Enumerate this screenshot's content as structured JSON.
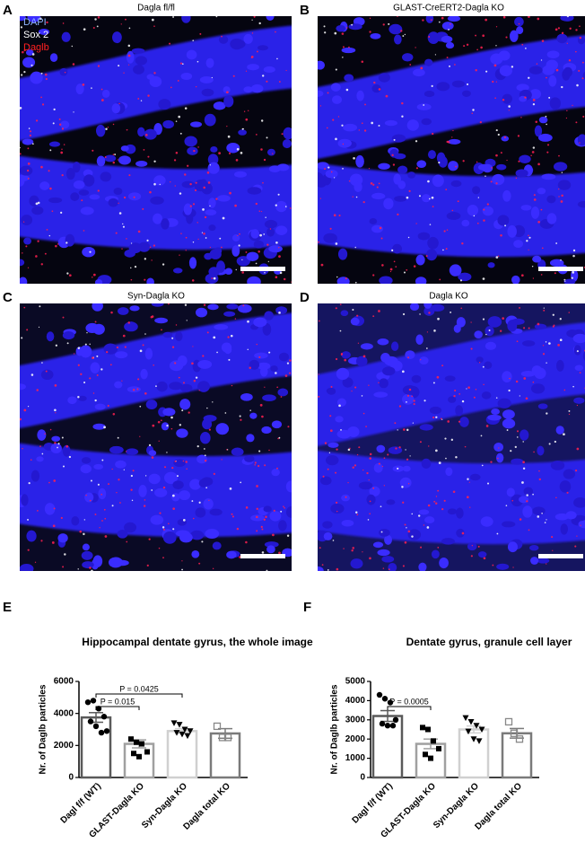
{
  "panels": [
    {
      "letter": "A",
      "title": "Dagla fl/fl",
      "legend": [
        "DAPI",
        "Sox 2",
        "Daglb"
      ]
    },
    {
      "letter": "B",
      "title": "GLAST-CreERT2-Dagla KO"
    },
    {
      "letter": "C",
      "title": "Syn-Dagla KO"
    },
    {
      "letter": "D",
      "title": "Dagla KO"
    }
  ],
  "chart_data": [
    {
      "type": "bar",
      "letter": "E",
      "title": "Hippocampal dentate gyrus, the whole image",
      "ylabel": "Nr. of Daglb particles",
      "categories": [
        "Dagl f/f (WT)",
        "GLAST-Dagla KO",
        "Syn-Dagla KO",
        "Dagla total KO"
      ],
      "values": [
        3750,
        2100,
        2900,
        2750
      ],
      "error": [
        300,
        250,
        150,
        300
      ],
      "points": [
        [
          4700,
          4800,
          4300,
          3800,
          3500,
          3200,
          2800,
          2900
        ],
        [
          2400,
          2200,
          2100,
          1600,
          1500,
          1300
        ],
        [
          3400,
          3300,
          3000,
          2900,
          2800,
          2700,
          2600
        ],
        [
          3200,
          2500,
          2500
        ]
      ],
      "markers": [
        "circle",
        "square",
        "triangle-down",
        "square-open"
      ],
      "colors": [
        "#5a5a5a",
        "#a0a0a0",
        "#d0d0d0",
        "#7a7a7a"
      ],
      "ylim": [
        0,
        6000
      ],
      "yticks": [
        0,
        2000,
        4000,
        6000
      ],
      "annotations": [
        {
          "label": "P = 0.015",
          "from": 0,
          "to": 1
        },
        {
          "label": "P = 0.0425",
          "from": 0,
          "to": 2
        }
      ]
    },
    {
      "type": "bar",
      "letter": "F",
      "title": "Dentate gyrus, granule cell layer",
      "ylabel": "Nr. of Daglb particles",
      "categories": [
        "Dagl f/f (WT)",
        "GLAST-Dagla KO",
        "Syn-Dagla KO",
        "Dagla total KO"
      ],
      "values": [
        3200,
        1750,
        2500,
        2300
      ],
      "error": [
        280,
        250,
        180,
        250
      ],
      "points": [
        [
          4300,
          4100,
          3900,
          3000,
          2800,
          2700,
          2700
        ],
        [
          2600,
          2500,
          1900,
          1500,
          1200,
          1000
        ],
        [
          3100,
          2900,
          2700,
          2500,
          2400,
          2000,
          1900
        ],
        [
          2900,
          2300,
          2000
        ]
      ],
      "markers": [
        "circle",
        "square",
        "triangle-down",
        "square-open"
      ],
      "colors": [
        "#5a5a5a",
        "#a0a0a0",
        "#d0d0d0",
        "#7a7a7a"
      ],
      "ylim": [
        0,
        5000
      ],
      "yticks": [
        0,
        1000,
        2000,
        3000,
        4000,
        5000
      ],
      "annotations": [
        {
          "label": "P = 0.0005",
          "from": 0,
          "to": 1
        }
      ]
    }
  ]
}
